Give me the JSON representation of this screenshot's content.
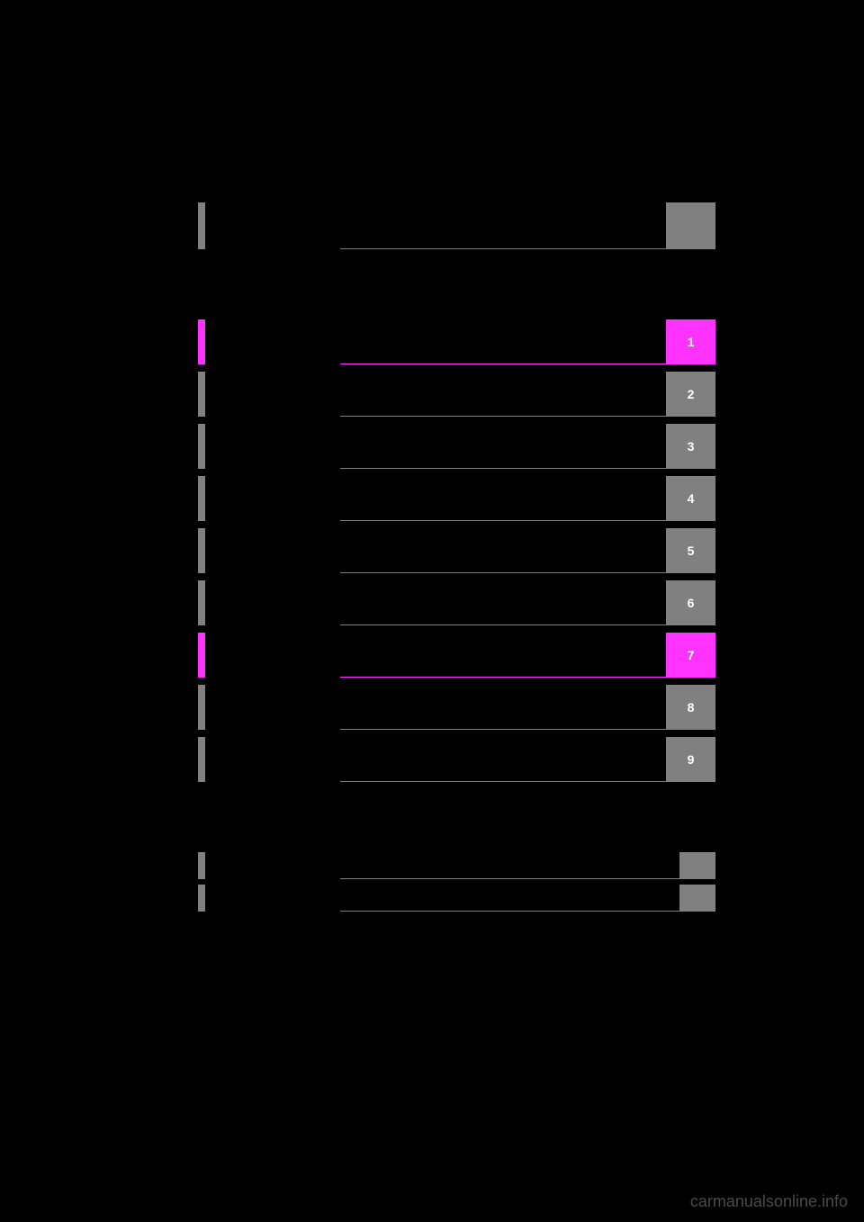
{
  "colors": {
    "gray": "#808080",
    "grayLine": "#808080",
    "magenta": "#ff33ff",
    "magentaLine": "#ff33ff",
    "black": "#000000"
  },
  "topSection": {
    "rows": [
      {
        "leftColor": "#808080",
        "lineColor": "#808080",
        "numBg": "#808080",
        "num": "",
        "numHeight": 52
      }
    ]
  },
  "mainSection": {
    "rows": [
      {
        "leftColor": "#ff33ff",
        "lineColor": "#ff33ff",
        "numBg": "#ff33ff",
        "num": "1"
      },
      {
        "leftColor": "#808080",
        "lineColor": "#808080",
        "numBg": "#808080",
        "num": "2"
      },
      {
        "leftColor": "#808080",
        "lineColor": "#808080",
        "numBg": "#808080",
        "num": "3"
      },
      {
        "leftColor": "#808080",
        "lineColor": "#808080",
        "numBg": "#808080",
        "num": "4"
      },
      {
        "leftColor": "#808080",
        "lineColor": "#808080",
        "numBg": "#808080",
        "num": "5"
      },
      {
        "leftColor": "#808080",
        "lineColor": "#808080",
        "numBg": "#808080",
        "num": "6"
      },
      {
        "leftColor": "#ff33ff",
        "lineColor": "#ff33ff",
        "numBg": "#ff33ff",
        "num": "7"
      },
      {
        "leftColor": "#808080",
        "lineColor": "#808080",
        "numBg": "#808080",
        "num": "8"
      },
      {
        "leftColor": "#808080",
        "lineColor": "#808080",
        "numBg": "#808080",
        "num": "9"
      }
    ]
  },
  "bottomSection": {
    "rows": [
      {
        "leftColor": "#808080",
        "lineColor": "#808080",
        "numBg": "#808080",
        "num": "",
        "short": true
      },
      {
        "leftColor": "#808080",
        "lineColor": "#808080",
        "numBg": "#808080",
        "num": "",
        "short": true
      }
    ]
  },
  "watermark": "carmanualsonline.info"
}
